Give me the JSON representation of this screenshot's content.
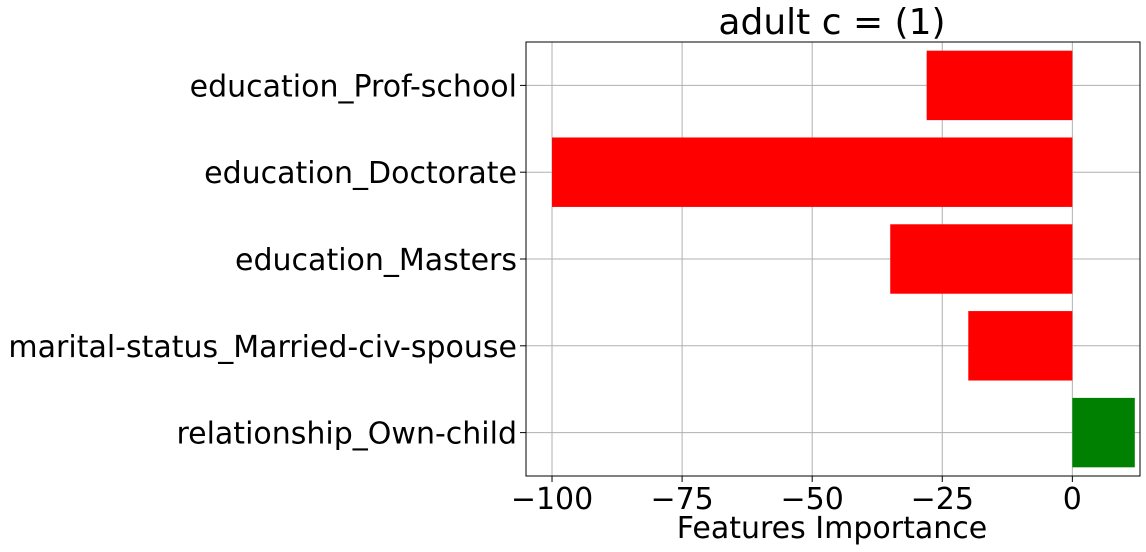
{
  "chart_data": {
    "type": "bar",
    "orientation": "horizontal",
    "title": "adult c = (1)",
    "xlabel": "Features Importance",
    "ylabel": "",
    "categories": [
      "education_Prof-school",
      "education_Doctorate",
      "education_Masters",
      "marital-status_Married-civ-spouse",
      "relationship_Own-child"
    ],
    "values": [
      -28,
      -100,
      -35,
      -20,
      12
    ],
    "xlim": [
      -105,
      13
    ],
    "xticks": [
      -100,
      -75,
      -50,
      -25,
      0
    ],
    "xtick_labels": [
      "−100",
      "−75",
      "−50",
      "−25",
      "0"
    ],
    "grid": true,
    "colors": {
      "negative": "#ff0000",
      "positive": "#008000"
    }
  }
}
